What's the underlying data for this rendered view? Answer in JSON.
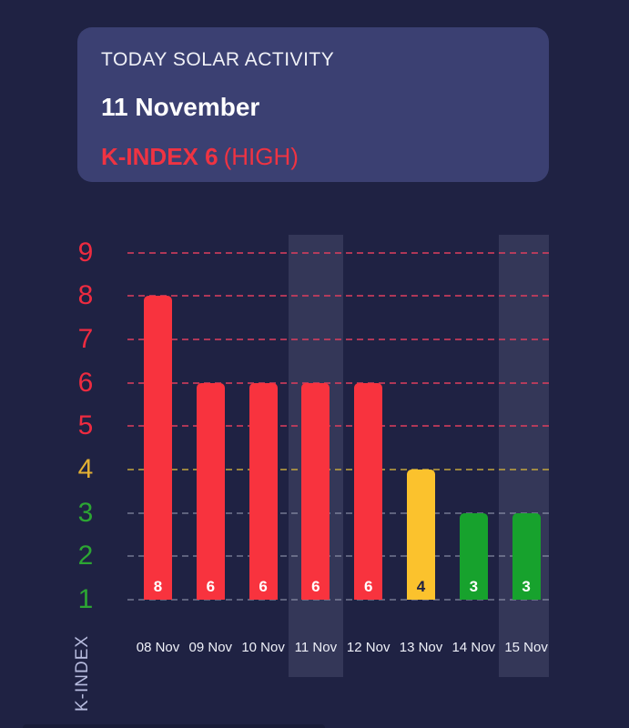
{
  "header_card": {
    "title": "TODAY SOLAR ACTIVITY",
    "date": "11 November",
    "kindex_value_label": "K-INDEX 6",
    "kindex_status_label": "(HIGH)"
  },
  "chart_data": {
    "type": "bar",
    "title": "",
    "xlabel": "",
    "ylabel": "K-INDEX",
    "categories": [
      "08 Nov",
      "09 Nov",
      "10 Nov",
      "11 Nov",
      "12 Nov",
      "13 Nov",
      "14 Nov",
      "15 Nov"
    ],
    "values": [
      8,
      6,
      6,
      6,
      6,
      4,
      3,
      3
    ],
    "value_labels": [
      "8",
      "6",
      "6",
      "6",
      "6",
      "4",
      "3",
      "3"
    ],
    "yticks": [
      9,
      8,
      7,
      6,
      5,
      4,
      3,
      2,
      1
    ],
    "ylim": [
      1,
      9
    ],
    "grid": "horizontal-dashed",
    "legend": "none",
    "highlighted_categories": [
      "11 Nov",
      "15 Nov"
    ]
  },
  "colors": {
    "background": "#1f2243",
    "card": "#3b4072",
    "kindex_text": "#ef3342",
    "bar_high": "#f8333e",
    "bar_mid": "#fbc22d",
    "bar_low": "#17a22d",
    "tick_high": "#ee2b40",
    "tick_mid": "#e3b033",
    "tick_low": "#2ca633",
    "grid_high": "rgba(222,62,94,0.75)",
    "grid_mid": "rgba(196,166,62,0.75)",
    "grid_low": "rgba(170,175,195,0.45)",
    "stripe": "rgba(193,201,235,0.13)",
    "axis_label": "#b7bcdf",
    "x_label": "#eef0f8",
    "value_label_light": "#ffffff",
    "value_label_dark": "#1f2243"
  }
}
